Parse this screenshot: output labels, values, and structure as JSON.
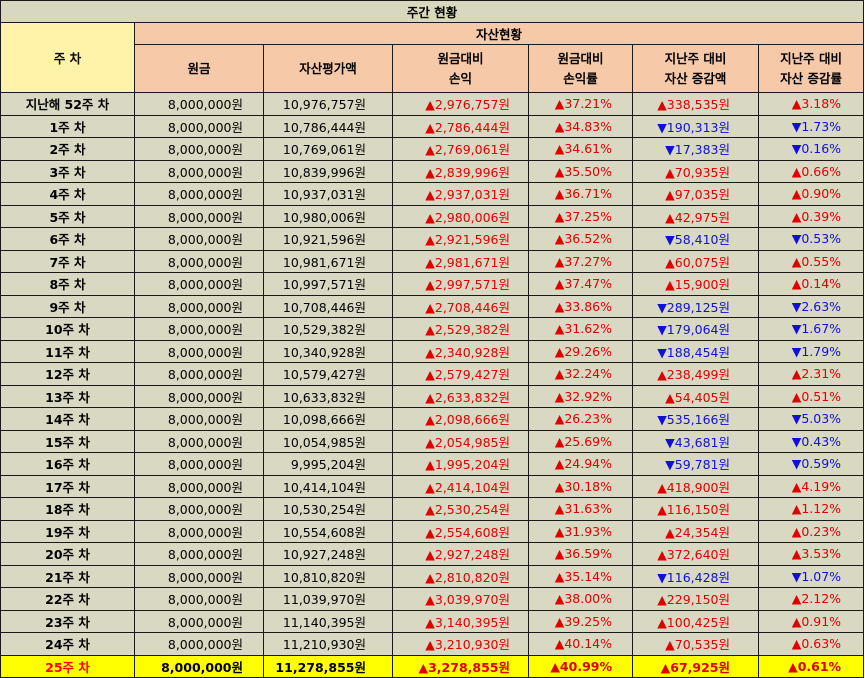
{
  "title": "주간 현황",
  "group_header": "자산현황",
  "week_header": "주 차",
  "columns": {
    "principal": "원금",
    "valuation": "자산평가액",
    "pl_line1": "원금대비",
    "pl_line2": "손익",
    "plr_line1": "원금대비",
    "plr_line2": "손익률",
    "chg_line1": "지난주 대비",
    "chg_line2": "자산 증감액",
    "chgr_line1": "지난주 대비",
    "chgr_line2": "자산 증감률"
  },
  "colors": {
    "up": "#e00000",
    "down": "#1010d8",
    "highlight": "#ffff00"
  },
  "rows": [
    {
      "week": "지난해 52주 차",
      "principal": "8,000,000원",
      "valuation": "10,976,757원",
      "pl": "▲2,976,757원",
      "plr": "▲37.21%",
      "chg": "▲338,535원",
      "chgr": "▲3.18%",
      "dir": "up"
    },
    {
      "week": "1주 차",
      "principal": "8,000,000원",
      "valuation": "10,786,444원",
      "pl": "▲2,786,444원",
      "plr": "▲34.83%",
      "chg": "▼190,313원",
      "chgr": "▼1.73%",
      "dir": "down"
    },
    {
      "week": "2주 차",
      "principal": "8,000,000원",
      "valuation": "10,769,061원",
      "pl": "▲2,769,061원",
      "plr": "▲34.61%",
      "chg": "▼17,383원",
      "chgr": "▼0.16%",
      "dir": "down"
    },
    {
      "week": "3주 차",
      "principal": "8,000,000원",
      "valuation": "10,839,996원",
      "pl": "▲2,839,996원",
      "plr": "▲35.50%",
      "chg": "▲70,935원",
      "chgr": "▲0.66%",
      "dir": "up"
    },
    {
      "week": "4주 차",
      "principal": "8,000,000원",
      "valuation": "10,937,031원",
      "pl": "▲2,937,031원",
      "plr": "▲36.71%",
      "chg": "▲97,035원",
      "chgr": "▲0.90%",
      "dir": "up"
    },
    {
      "week": "5주 차",
      "principal": "8,000,000원",
      "valuation": "10,980,006원",
      "pl": "▲2,980,006원",
      "plr": "▲37.25%",
      "chg": "▲42,975원",
      "chgr": "▲0.39%",
      "dir": "up"
    },
    {
      "week": "6주 차",
      "principal": "8,000,000원",
      "valuation": "10,921,596원",
      "pl": "▲2,921,596원",
      "plr": "▲36.52%",
      "chg": "▼58,410원",
      "chgr": "▼0.53%",
      "dir": "down"
    },
    {
      "week": "7주 차",
      "principal": "8,000,000원",
      "valuation": "10,981,671원",
      "pl": "▲2,981,671원",
      "plr": "▲37.27%",
      "chg": "▲60,075원",
      "chgr": "▲0.55%",
      "dir": "up"
    },
    {
      "week": "8주 차",
      "principal": "8,000,000원",
      "valuation": "10,997,571원",
      "pl": "▲2,997,571원",
      "plr": "▲37.47%",
      "chg": "▲15,900원",
      "chgr": "▲0.14%",
      "dir": "up"
    },
    {
      "week": "9주 차",
      "principal": "8,000,000원",
      "valuation": "10,708,446원",
      "pl": "▲2,708,446원",
      "plr": "▲33.86%",
      "chg": "▼289,125원",
      "chgr": "▼2.63%",
      "dir": "down"
    },
    {
      "week": "10주 차",
      "principal": "8,000,000원",
      "valuation": "10,529,382원",
      "pl": "▲2,529,382원",
      "plr": "▲31.62%",
      "chg": "▼179,064원",
      "chgr": "▼1.67%",
      "dir": "down"
    },
    {
      "week": "11주 차",
      "principal": "8,000,000원",
      "valuation": "10,340,928원",
      "pl": "▲2,340,928원",
      "plr": "▲29.26%",
      "chg": "▼188,454원",
      "chgr": "▼1.79%",
      "dir": "down"
    },
    {
      "week": "12주 차",
      "principal": "8,000,000원",
      "valuation": "10,579,427원",
      "pl": "▲2,579,427원",
      "plr": "▲32.24%",
      "chg": "▲238,499원",
      "chgr": "▲2.31%",
      "dir": "up"
    },
    {
      "week": "13주 차",
      "principal": "8,000,000원",
      "valuation": "10,633,832원",
      "pl": "▲2,633,832원",
      "plr": "▲32.92%",
      "chg": "▲54,405원",
      "chgr": "▲0.51%",
      "dir": "up"
    },
    {
      "week": "14주 차",
      "principal": "8,000,000원",
      "valuation": "10,098,666원",
      "pl": "▲2,098,666원",
      "plr": "▲26.23%",
      "chg": "▼535,166원",
      "chgr": "▼5.03%",
      "dir": "down"
    },
    {
      "week": "15주 차",
      "principal": "8,000,000원",
      "valuation": "10,054,985원",
      "pl": "▲2,054,985원",
      "plr": "▲25.69%",
      "chg": "▼43,681원",
      "chgr": "▼0.43%",
      "dir": "down"
    },
    {
      "week": "16주 차",
      "principal": "8,000,000원",
      "valuation": "9,995,204원",
      "pl": "▲1,995,204원",
      "plr": "▲24.94%",
      "chg": "▼59,781원",
      "chgr": "▼0.59%",
      "dir": "down"
    },
    {
      "week": "17주 차",
      "principal": "8,000,000원",
      "valuation": "10,414,104원",
      "pl": "▲2,414,104원",
      "plr": "▲30.18%",
      "chg": "▲418,900원",
      "chgr": "▲4.19%",
      "dir": "up"
    },
    {
      "week": "18주 차",
      "principal": "8,000,000원",
      "valuation": "10,530,254원",
      "pl": "▲2,530,254원",
      "plr": "▲31.63%",
      "chg": "▲116,150원",
      "chgr": "▲1.12%",
      "dir": "up"
    },
    {
      "week": "19주 차",
      "principal": "8,000,000원",
      "valuation": "10,554,608원",
      "pl": "▲2,554,608원",
      "plr": "▲31.93%",
      "chg": "▲24,354원",
      "chgr": "▲0.23%",
      "dir": "up"
    },
    {
      "week": "20주 차",
      "principal": "8,000,000원",
      "valuation": "10,927,248원",
      "pl": "▲2,927,248원",
      "plr": "▲36.59%",
      "chg": "▲372,640원",
      "chgr": "▲3.53%",
      "dir": "up"
    },
    {
      "week": "21주 차",
      "principal": "8,000,000원",
      "valuation": "10,810,820원",
      "pl": "▲2,810,820원",
      "plr": "▲35.14%",
      "chg": "▼116,428원",
      "chgr": "▼1.07%",
      "dir": "down"
    },
    {
      "week": "22주 차",
      "principal": "8,000,000원",
      "valuation": "11,039,970원",
      "pl": "▲3,039,970원",
      "plr": "▲38.00%",
      "chg": "▲229,150원",
      "chgr": "▲2.12%",
      "dir": "up"
    },
    {
      "week": "23주 차",
      "principal": "8,000,000원",
      "valuation": "11,140,395원",
      "pl": "▲3,140,395원",
      "plr": "▲39.25%",
      "chg": "▲100,425원",
      "chgr": "▲0.91%",
      "dir": "up"
    },
    {
      "week": "24주 차",
      "principal": "8,000,000원",
      "valuation": "11,210,930원",
      "pl": "▲3,210,930원",
      "plr": "▲40.14%",
      "chg": "▲70,535원",
      "chgr": "▲0.63%",
      "dir": "up"
    },
    {
      "week": "25주 차",
      "principal": "8,000,000원",
      "valuation": "11,278,855원",
      "pl": "▲3,278,855원",
      "plr": "▲40.99%",
      "chg": "▲67,925원",
      "chgr": "▲0.61%",
      "dir": "up",
      "highlight": true
    }
  ]
}
